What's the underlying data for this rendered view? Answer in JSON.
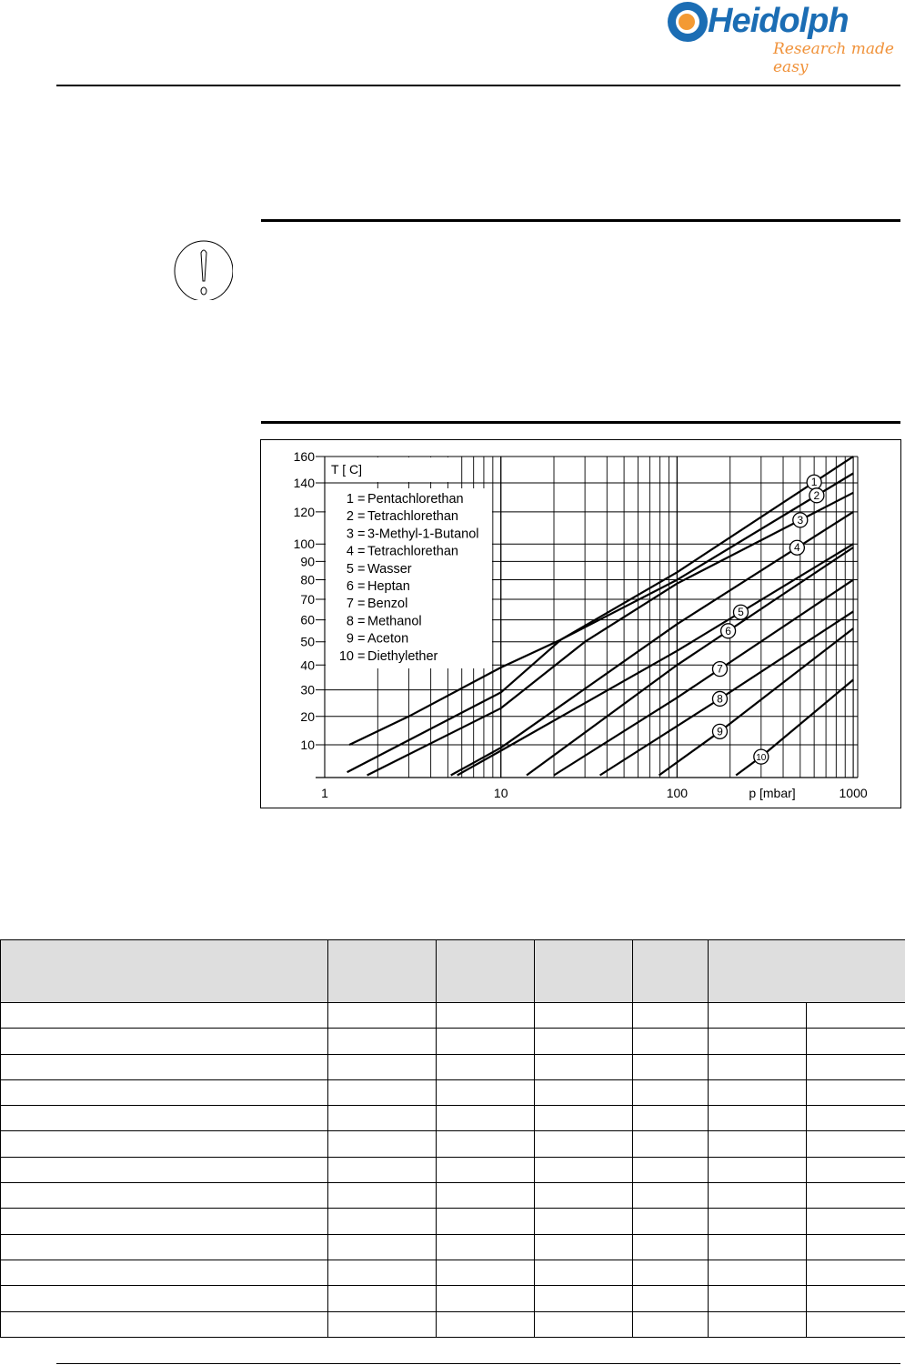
{
  "logo": {
    "brand": "Heidolph",
    "tagline": "Research made easy",
    "brand_color": "#1b6db4",
    "accent_color": "#f39a34"
  },
  "notice": {
    "icon": "exclamation-icon"
  },
  "chart_data": {
    "type": "line",
    "x_scale": "log",
    "y_scale": "reciprocal absolute temperature",
    "xlim": [
      1,
      1000
    ],
    "ylim": [
      0,
      160
    ],
    "xlabel": "p [mbar]",
    "ylabel": "T [ C]",
    "x_ticks": [
      "1",
      "10",
      "100",
      "1000"
    ],
    "y_ticks": [
      "10",
      "20",
      "30",
      "40",
      "50",
      "60",
      "70",
      "80",
      "90",
      "100",
      "120",
      "140",
      "160"
    ],
    "grid": true,
    "legend_placement": "top-left",
    "legend": [
      "1 = Pentachlorethan",
      "2 = Tetrachlorethan",
      "3 = 3-Methyl-1-Butanol",
      "4 = Tetrachlorethan",
      "5 = Wasser",
      "6 = Heptan",
      "7 = Benzol",
      "8 = Methanol",
      "9 = Aceton",
      "10 = Diethylether"
    ],
    "legend_items": [
      {
        "num": "1",
        "name": "Pentachlorethan"
      },
      {
        "num": "2",
        "name": "Tetrachlorethan"
      },
      {
        "num": "3",
        "name": "3-Methyl-1-Butanol"
      },
      {
        "num": "4",
        "name": "Tetrachlorethan"
      },
      {
        "num": "5",
        "name": "Wasser"
      },
      {
        "num": "6",
        "name": "Heptan"
      },
      {
        "num": "7",
        "name": "Benzol"
      },
      {
        "num": "8",
        "name": "Methanol"
      },
      {
        "num": "9",
        "name": "Aceton"
      },
      {
        "num": "10",
        "name": "Diethylether"
      }
    ],
    "series": [
      {
        "name": "1",
        "points": [
          [
            1.38,
            10
          ],
          [
            3,
            20
          ],
          [
            10,
            39
          ],
          [
            22,
            51
          ],
          [
            100,
            84
          ],
          [
            1000,
            160
          ]
        ]
      },
      {
        "name": "2",
        "points": [
          [
            1.34,
            1
          ],
          [
            10,
            29
          ],
          [
            22,
            51
          ],
          [
            100,
            80
          ],
          [
            1000,
            147
          ]
        ]
      },
      {
        "name": "3",
        "points": [
          [
            1.74,
            0
          ],
          [
            10,
            23
          ],
          [
            30,
            50
          ],
          [
            100,
            78
          ],
          [
            1000,
            133
          ]
        ]
      },
      {
        "name": "4",
        "points": [
          [
            5.2,
            0
          ],
          [
            10,
            9
          ],
          [
            100,
            58
          ],
          [
            1000,
            120
          ]
        ]
      },
      {
        "name": "5",
        "points": [
          [
            5.65,
            0
          ],
          [
            10,
            8
          ],
          [
            100,
            46
          ],
          [
            1000,
            100
          ]
        ]
      },
      {
        "name": "6",
        "points": [
          [
            14,
            0
          ],
          [
            100,
            40
          ],
          [
            1000,
            98
          ]
        ]
      },
      {
        "name": "7",
        "points": [
          [
            20,
            0
          ],
          [
            100,
            27
          ],
          [
            1000,
            80
          ]
        ]
      },
      {
        "name": "8",
        "points": [
          [
            36.5,
            0
          ],
          [
            170,
            26
          ],
          [
            1000,
            64
          ]
        ]
      },
      {
        "name": "9",
        "points": [
          [
            79,
            0
          ],
          [
            170,
            14
          ],
          [
            1000,
            56
          ]
        ]
      },
      {
        "name": "10",
        "points": [
          [
            216,
            0
          ],
          [
            300,
            6
          ],
          [
            1000,
            34
          ]
        ]
      }
    ]
  },
  "table": {
    "header": [
      "",
      "",
      "",
      "",
      "",
      ""
    ],
    "row_count": 13
  }
}
